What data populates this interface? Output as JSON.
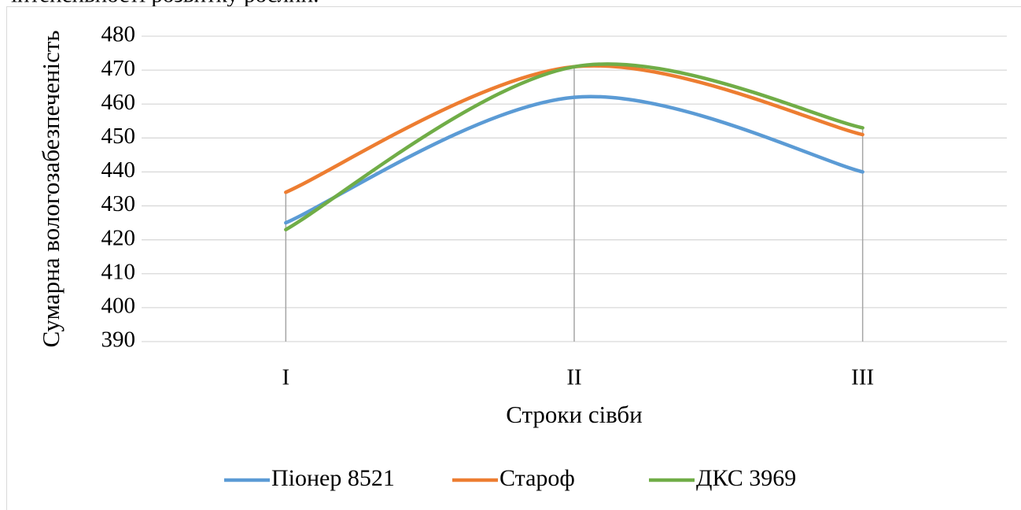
{
  "caption_above": "інтенсивності розвитку рослин.",
  "chart_data": {
    "type": "line",
    "smooth": true,
    "xlabel": "Строки сівби",
    "ylabel": "Сумарна вологозабезпеченість",
    "categories": [
      "I",
      "II",
      "III"
    ],
    "series": [
      {
        "name": "Піонер 8521",
        "color": "#5b9bd5",
        "values": [
          425,
          462,
          440
        ]
      },
      {
        "name": "Староф",
        "color": "#ed7d31",
        "values": [
          434,
          471,
          451
        ]
      },
      {
        "name": "ДКС 3969",
        "color": "#70ad47",
        "values": [
          423,
          471,
          453
        ]
      }
    ],
    "ylim": [
      390,
      480
    ],
    "yticks": [
      390,
      400,
      410,
      420,
      430,
      440,
      450,
      460,
      470,
      480
    ],
    "grid": true,
    "drop_lines": true,
    "legend": "bottom"
  }
}
